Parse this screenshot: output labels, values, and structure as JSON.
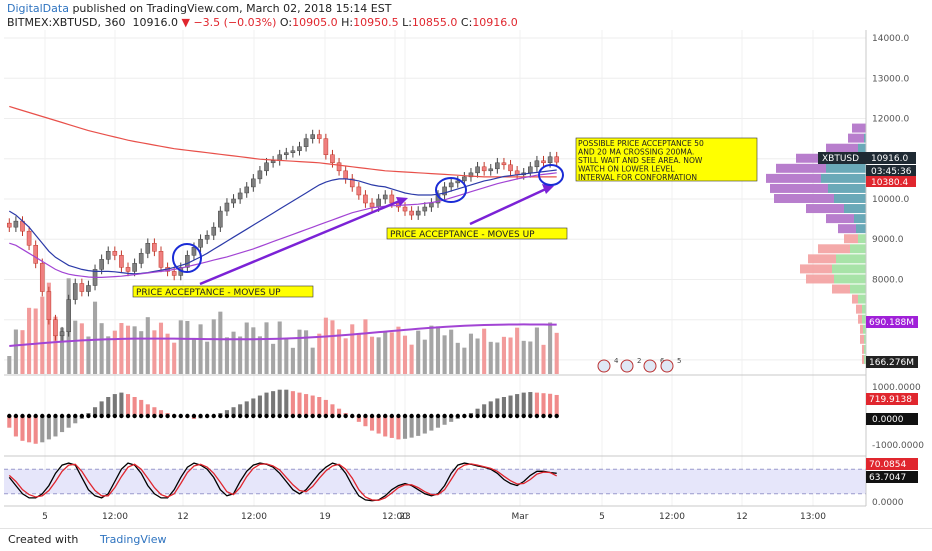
{
  "header": {
    "brand": "DigitalData",
    "published": " published on TradingView.com, March 02, 2018 15:14 EST",
    "symbol": "BITMEX:XBTUSD, 360",
    "last": "10916.0",
    "change": "▼ −3.5 (−0.03%)",
    "o_label": "O:",
    "o_val": "10905.0",
    "h_label": "H:",
    "h_val": "10950.5",
    "l_label": "L:",
    "l_val": "10855.0",
    "c_label": "C:",
    "c_val": "10916.0"
  },
  "footer": {
    "made": "Created with",
    "brand": "TradingView"
  },
  "colors": {
    "up": "#7f7f7f",
    "down": "#ef7f7f",
    "ma200": "#e8504a",
    "ma50": "#2b3aa8",
    "ma20": "#a244d4",
    "annotation": "#7b22d6",
    "note_bg": "#ffff00"
  },
  "annotations": {
    "a1": "PRICE ACCEPTANCE - MOVES UP",
    "a2": "PRICE ACCEPTANCE - MOVES UP",
    "a3": [
      "POSSIBLE PRICE ACCEPTANCE 50",
      "AND 20 MA CROSSING 200MA.",
      "STILL WAIT AND SEE AREA. NOW",
      "WATCH ON LOWER LEVEL",
      "INTERVAL FOR CONFORMATION"
    ]
  },
  "price_labels": {
    "symbol_tag": "XBTUSD",
    "price": "10916.0",
    "countdown": "03:45:36",
    "level": "10380.4",
    "volume_ma": "690.188M",
    "volume": "166.276M",
    "macd": "719.9138",
    "macd_zero": "0.0000",
    "stoch_k": "70.0854",
    "stoch_d": "63.7047"
  },
  "event_flags": [
    "4",
    "2",
    "6",
    "5"
  ],
  "chart_data": [
    {
      "type": "candlestick",
      "title": "BITMEX:XBTUSD, 360",
      "ylim": [
        5700,
        14200
      ],
      "y_ticks": [
        "14000.0",
        "13000.0",
        "12000.0",
        "11000.0",
        "10000.0",
        "9000.0",
        "8000.0",
        "7000.0",
        "6000.0"
      ],
      "x_ticks": [
        "5",
        "12:00",
        "12",
        "12:00",
        "19",
        "12:00",
        "23",
        "Mar",
        "5",
        "12:00",
        "12",
        "13:00"
      ],
      "close": [
        9300,
        9450,
        9200,
        8850,
        8400,
        7700,
        7000,
        6600,
        6700,
        7500,
        7900,
        7700,
        7850,
        8250,
        8500,
        8700,
        8600,
        8300,
        8200,
        8400,
        8650,
        8900,
        8700,
        8300,
        8200,
        8100,
        8300,
        8600,
        8800,
        9000,
        9100,
        9300,
        9700,
        9900,
        10000,
        10150,
        10300,
        10500,
        10700,
        10900,
        10950,
        11100,
        11150,
        11200,
        11300,
        11500,
        11600,
        11500,
        11100,
        10900,
        10700,
        10500,
        10300,
        10100,
        9900,
        9800,
        10000,
        10100,
        9900,
        9800,
        9700,
        9600,
        9700,
        9800,
        9900,
        10100,
        10300,
        10400,
        10450,
        10550,
        10650,
        10800,
        10700,
        10750,
        10900,
        10850,
        10700,
        10600,
        10650,
        10800,
        10950,
        10900,
        11050,
        10916
      ],
      "series": [
        {
          "name": "MA200",
          "values": [
            12300,
            12250,
            12200,
            12150,
            12100,
            12050,
            12000,
            11950,
            11900,
            11850,
            11800,
            11750,
            11700,
            11660,
            11620,
            11580,
            11540,
            11500,
            11460,
            11430,
            11400,
            11370,
            11340,
            11310,
            11280,
            11250,
            11230,
            11210,
            11190,
            11170,
            11150,
            11130,
            11110,
            11090,
            11070,
            11050,
            11030,
            11010,
            10990,
            10980,
            10970,
            10960,
            10950,
            10940,
            10930,
            10920,
            10910,
            10900,
            10880,
            10860,
            10840,
            10820,
            10800,
            10780,
            10760,
            10740,
            10720,
            10700,
            10690,
            10680,
            10670,
            10660,
            10650,
            10640,
            10630,
            10620,
            10610,
            10600,
            10590,
            10580,
            10570,
            10560,
            10550,
            10550,
            10550,
            10550,
            10550,
            10550,
            10550,
            10550,
            10550,
            10550,
            10550,
            10550
          ]
        },
        {
          "name": "MA50",
          "values": [
            9700,
            9600,
            9450,
            9300,
            9100,
            8900,
            8700,
            8550,
            8450,
            8350,
            8300,
            8250,
            8220,
            8200,
            8200,
            8200,
            8190,
            8170,
            8150,
            8140,
            8150,
            8170,
            8200,
            8230,
            8260,
            8300,
            8350,
            8400,
            8480,
            8560,
            8650,
            8750,
            8850,
            8950,
            9050,
            9150,
            9250,
            9350,
            9450,
            9550,
            9650,
            9750,
            9850,
            9950,
            10050,
            10150,
            10250,
            10350,
            10420,
            10470,
            10500,
            10500,
            10480,
            10450,
            10400,
            10350,
            10320,
            10300,
            10250,
            10200,
            10150,
            10120,
            10100,
            10100,
            10100,
            10120,
            10150,
            10200,
            10250,
            10300,
            10350,
            10400,
            10450,
            10480,
            10520,
            10560,
            10580,
            10600,
            10620,
            10640,
            10660,
            10680,
            10700,
            10720
          ]
        },
        {
          "name": "MA20",
          "values": [
            8900,
            8850,
            8750,
            8650,
            8550,
            8450,
            8350,
            8250,
            8180,
            8130,
            8100,
            8080,
            8060,
            8050,
            8050,
            8060,
            8070,
            8080,
            8100,
            8120,
            8140,
            8160,
            8180,
            8200,
            8220,
            8250,
            8280,
            8320,
            8360,
            8400,
            8440,
            8480,
            8520,
            8560,
            8610,
            8660,
            8710,
            8760,
            8820,
            8880,
            8940,
            9000,
            9060,
            9120,
            9180,
            9240,
            9300,
            9360,
            9420,
            9480,
            9540,
            9600,
            9660,
            9700,
            9740,
            9780,
            9800,
            9820,
            9830,
            9840,
            9850,
            9860,
            9870,
            9890,
            9910,
            9940,
            9980,
            10030,
            10080,
            10130,
            10180,
            10230,
            10280,
            10330,
            10380,
            10420,
            10460,
            10500,
            10530,
            10560,
            10590,
            10610,
            10630,
            10650
          ]
        }
      ]
    },
    {
      "type": "bar",
      "title": "Volume",
      "volume_ma_value": "690.188M",
      "volume_value": "166.276M"
    },
    {
      "type": "histogram",
      "title": "MACD",
      "ylim": [
        -1300,
        1300
      ],
      "y_ticks": [
        "1000.0000",
        "0.0000",
        "-1000.0000"
      ],
      "values": [
        -400,
        -700,
        -850,
        -900,
        -950,
        -900,
        -800,
        -700,
        -550,
        -400,
        -250,
        -100,
        100,
        300,
        500,
        650,
        750,
        800,
        750,
        650,
        550,
        400,
        300,
        200,
        100,
        50,
        0,
        -50,
        -100,
        -80,
        -50,
        0,
        100,
        200,
        300,
        400,
        500,
        600,
        700,
        800,
        850,
        900,
        900,
        850,
        800,
        750,
        700,
        650,
        550,
        400,
        250,
        100,
        -50,
        -200,
        -350,
        -500,
        -600,
        -700,
        -750,
        -800,
        -780,
        -740,
        -680,
        -600,
        -500,
        -400,
        -300,
        -200,
        -100,
        0,
        100,
        250,
        400,
        500,
        600,
        650,
        700,
        750,
        800,
        820,
        800,
        780,
        760,
        719.9
      ]
    },
    {
      "type": "line",
      "title": "Stochastic",
      "ylim": [
        -5,
        105
      ],
      "y_ticks": [
        "0.0000"
      ],
      "band": [
        20,
        80
      ],
      "series": [
        {
          "name": "%K",
          "values": [
            60,
            40,
            20,
            10,
            10,
            20,
            40,
            70,
            90,
            95,
            90,
            60,
            30,
            15,
            10,
            20,
            50,
            80,
            95,
            90,
            70,
            40,
            20,
            10,
            10,
            30,
            60,
            85,
            95,
            90,
            80,
            60,
            30,
            15,
            20,
            50,
            75,
            90,
            95,
            92,
            85,
            70,
            50,
            30,
            20,
            30,
            50,
            70,
            85,
            95,
            90,
            70,
            40,
            15,
            5,
            3,
            5,
            15,
            30,
            40,
            45,
            40,
            30,
            20,
            15,
            20,
            40,
            70,
            90,
            95,
            92,
            88,
            85,
            80,
            70,
            55,
            45,
            40,
            50,
            65,
            75,
            75,
            72,
            70
          ]
        },
        {
          "name": "%D",
          "values": [
            65,
            50,
            30,
            18,
            12,
            15,
            28,
            50,
            75,
            90,
            92,
            75,
            50,
            28,
            15,
            15,
            35,
            62,
            85,
            92,
            80,
            58,
            35,
            18,
            12,
            20,
            45,
            72,
            88,
            92,
            85,
            70,
            48,
            25,
            18,
            35,
            62,
            82,
            92,
            93,
            88,
            78,
            60,
            42,
            28,
            25,
            38,
            58,
            76,
            88,
            92,
            80,
            58,
            30,
            12,
            5,
            4,
            10,
            22,
            35,
            42,
            42,
            35,
            25,
            18,
            18,
            30,
            55,
            80,
            90,
            93,
            90,
            86,
            82,
            75,
            63,
            52,
            44,
            45,
            55,
            68,
            73,
            72,
            63.7
          ]
        }
      ]
    }
  ]
}
